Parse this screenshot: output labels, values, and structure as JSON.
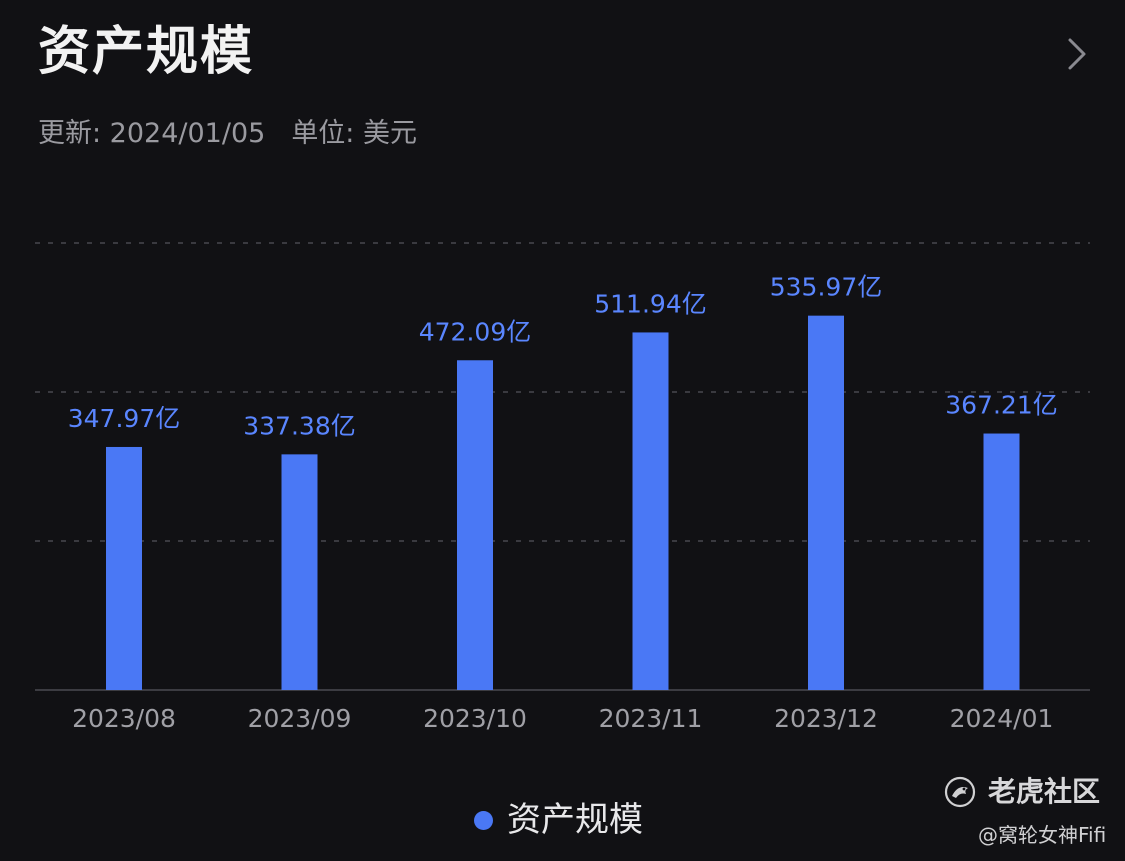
{
  "header": {
    "title": "资产规模",
    "updated_label": "更新: 2024/01/05",
    "unit_label": "单位: 美元",
    "chevron_icon": "chevron-right-icon"
  },
  "colors": {
    "background": "#111114",
    "bar": "#4a78f5",
    "value_label": "#5a86ff",
    "axis_label": "#a0a0a6",
    "gridline": "#3a3a40"
  },
  "chart_data": {
    "type": "bar",
    "title": "资产规模",
    "categories": [
      "2023/08",
      "2023/09",
      "2023/10",
      "2023/11",
      "2023/12",
      "2024/01"
    ],
    "series": [
      {
        "name": "资产规模",
        "values": [
          347.97,
          337.38,
          472.09,
          511.94,
          535.97,
          367.21
        ]
      }
    ],
    "value_labels": [
      "347.97亿",
      "337.38亿",
      "472.09亿",
      "511.94亿",
      "535.97亿",
      "367.21亿"
    ],
    "unit": "亿",
    "ylim": [
      0,
      640
    ],
    "grid": true,
    "legend_position": "bottom-center"
  },
  "legend": {
    "label": "资产规模"
  },
  "watermark": {
    "name": "老虎社区",
    "user": "@窝轮女神Fifi",
    "logo_icon": "tiger-community-logo-icon"
  }
}
